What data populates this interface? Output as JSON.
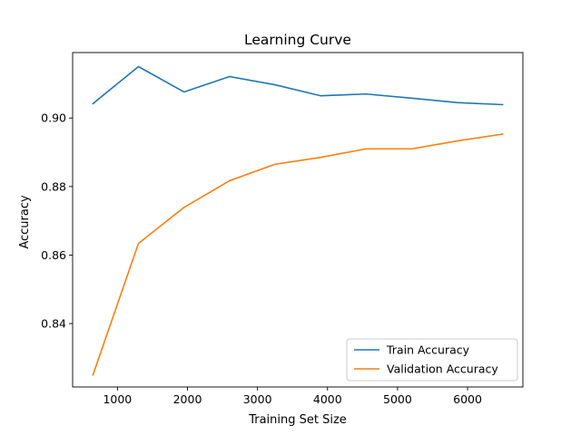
{
  "chart_data": {
    "type": "line",
    "title": "Learning Curve",
    "xlabel": "Training Set Size",
    "ylabel": "Accuracy",
    "x": [
      650,
      1300,
      1950,
      2600,
      3250,
      3900,
      4550,
      5200,
      5850,
      6500
    ],
    "series": [
      {
        "name": "Train Accuracy",
        "color": "#1f77b4",
        "values": [
          0.9042,
          0.915,
          0.9076,
          0.9121,
          0.9097,
          0.9065,
          0.907,
          0.9058,
          0.9045,
          0.9039
        ]
      },
      {
        "name": "Validation Accuracy",
        "color": "#ff7f0e",
        "values": [
          0.825,
          0.8634,
          0.8739,
          0.8817,
          0.8865,
          0.8885,
          0.891,
          0.891,
          0.8933,
          0.8953
        ]
      }
    ],
    "xlim": [
      360,
      6790
    ],
    "ylim": [
      0.8215,
      0.9191
    ],
    "xticks": [
      1000,
      2000,
      3000,
      4000,
      5000,
      6000
    ],
    "yticks": [
      0.84,
      0.86,
      0.88,
      0.9
    ],
    "ytick_labels": [
      "0.84",
      "0.86",
      "0.88",
      "0.90"
    ],
    "legend": "lower-right",
    "grid": false
  }
}
